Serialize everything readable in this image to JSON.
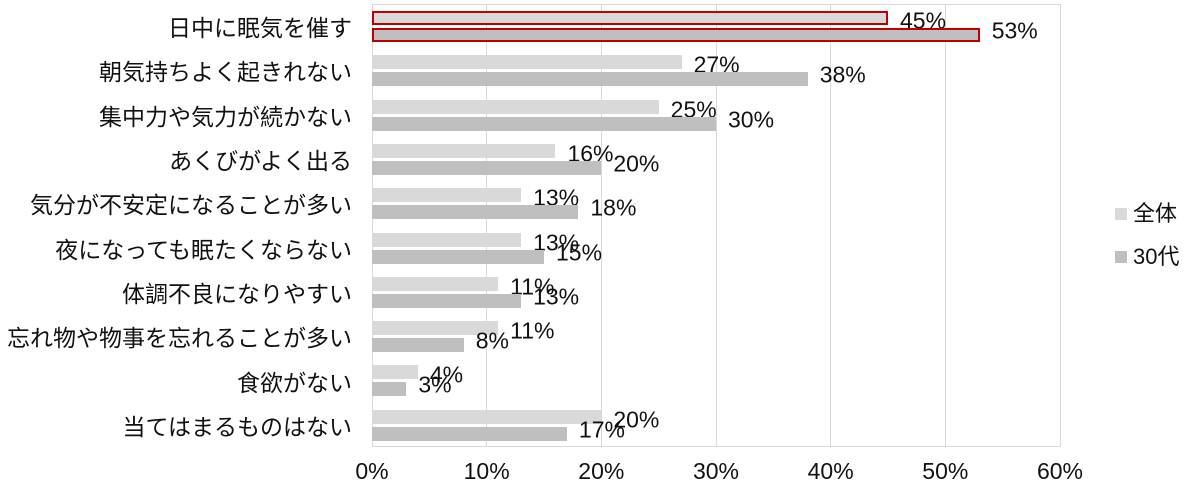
{
  "chart_data": {
    "type": "bar",
    "orientation": "horizontal",
    "title": "",
    "categories": [
      "日中に眠気を催す",
      "朝気持ちよく起きれない",
      "集中力や気力が続かない",
      "あくびがよく出る",
      "気分が不安定になることが多い",
      "夜になっても眠たくならない",
      "体調不良になりやすい",
      "忘れ物や物事を忘れることが多い",
      "食欲がない",
      "当てはまるものはない"
    ],
    "series": [
      {
        "name": "全体",
        "color": "#d9d9d9",
        "values": [
          45,
          27,
          25,
          16,
          13,
          13,
          11,
          11,
          4,
          20
        ]
      },
      {
        "name": "30代",
        "color": "#bfbfbf",
        "values": [
          53,
          38,
          30,
          20,
          18,
          15,
          13,
          8,
          3,
          17
        ]
      }
    ],
    "value_suffix": "%",
    "data_labels": true,
    "x_ticks": [
      "0%",
      "10%",
      "20%",
      "30%",
      "40%",
      "50%",
      "60%"
    ],
    "xlim": [
      0,
      60
    ],
    "gridlines": true,
    "legend_position": "right",
    "highlight": {
      "category_index": 0,
      "outline_color": "#c00000"
    },
    "colors": {
      "grid": "#d9d9d9",
      "text": "#111111",
      "background": "#ffffff"
    }
  }
}
